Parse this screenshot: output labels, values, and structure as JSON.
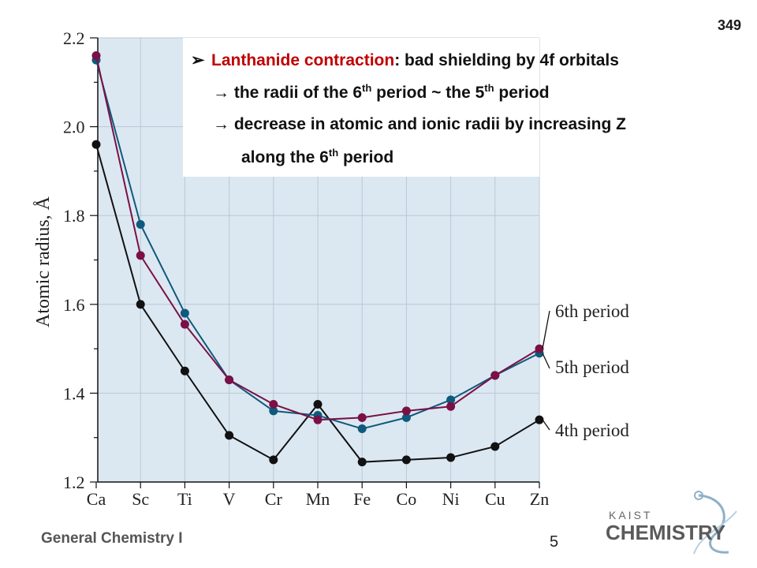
{
  "slide": {
    "number": "349",
    "footer": "General Chemistry I",
    "page": "5",
    "bullet_icon": "arrowhead-bullet-icon"
  },
  "textbox": {
    "line1_term": "Lanthanide contraction",
    "line1_rest": ": bad shielding by 4f orbitals",
    "line2_a": "→ the radii of the 6",
    "line2_sup1": "th",
    "line2_b": " period ~ the 5",
    "line2_sup2": "th",
    "line2_c": " period",
    "line3": "→ decrease in atomic and ionic radii by increasing Z",
    "line4_a": "along the 6",
    "line4_sup": "th",
    "line4_b": " period"
  },
  "logo": {
    "top": "KAIST",
    "bottom": "CHEMISTRY"
  },
  "chart_data": {
    "type": "line",
    "categories": [
      "Ca",
      "Sc",
      "Ti",
      "V",
      "Cr",
      "Mn",
      "Fe",
      "Co",
      "Ni",
      "Cu",
      "Zn"
    ],
    "ylabel": "Atomic radius, Å",
    "ylim": [
      1.2,
      2.2
    ],
    "yticks": [
      "1.2",
      "1.4",
      "1.6",
      "1.8",
      "2.0",
      "2.2"
    ],
    "grid": true,
    "series": [
      {
        "name": "4th period",
        "color": "#111111",
        "values": [
          1.96,
          1.6,
          1.45,
          1.305,
          1.25,
          1.375,
          1.245,
          1.25,
          1.255,
          1.28,
          1.34
        ]
      },
      {
        "name": "5th period",
        "color": "#0e5a7e",
        "values": [
          2.15,
          1.78,
          1.58,
          1.43,
          1.36,
          1.35,
          1.32,
          1.345,
          1.385,
          1.44,
          1.49
        ]
      },
      {
        "name": "6th period",
        "color": "#7a1046",
        "values": [
          2.16,
          1.71,
          1.555,
          1.43,
          1.375,
          1.34,
          1.345,
          1.36,
          1.37,
          1.44,
          1.5
        ]
      }
    ],
    "legend_order": [
      "6th period",
      "5th period",
      "4th period"
    ]
  }
}
